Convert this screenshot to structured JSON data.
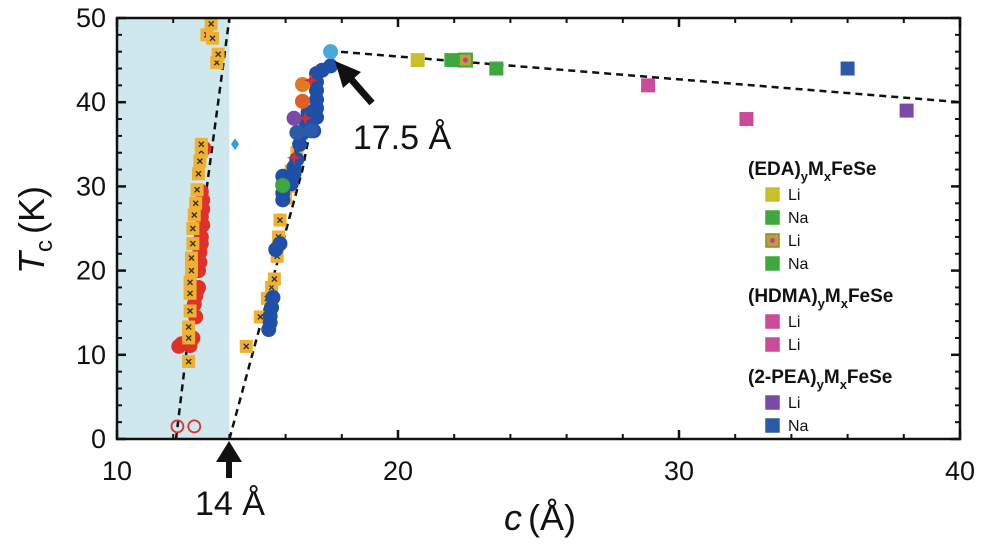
{
  "chart_data": {
    "type": "scatter",
    "xlabel": "c (Å)",
    "xlabel_var": "c",
    "xlabel_unit": "(Å)",
    "ylabel": "Tc (K)",
    "ylabel_var": "T",
    "ylabel_sub": "c",
    "ylabel_unit": "(K)",
    "xlim": [
      10,
      40
    ],
    "ylim": [
      0,
      50
    ],
    "xticks": [
      10,
      20,
      30,
      40
    ],
    "yticks": [
      0,
      10,
      20,
      30,
      40,
      50
    ],
    "grid": false,
    "shaded_region": {
      "x": [
        10,
        14
      ],
      "color": "#cfe8ee"
    },
    "annotations": [
      {
        "text": "14 Å",
        "x": 14,
        "y": 0
      },
      {
        "text": "17.5 Å",
        "x": 17.5,
        "y": 46
      }
    ],
    "trend_lines": [
      {
        "name": "left",
        "points": [
          [
            12.1,
            0
          ],
          [
            13.0,
            25
          ],
          [
            14.0,
            50
          ]
        ]
      },
      {
        "name": "main",
        "points": [
          [
            14.0,
            0
          ],
          [
            16.6,
            32
          ],
          [
            17.3,
            44
          ],
          [
            17.9,
            46
          ],
          [
            40,
            40
          ]
        ]
      }
    ],
    "legend": {
      "position": "right",
      "groups": [
        {
          "title_main": "(EDA)",
          "title_sub1": "y",
          "title_m": "M",
          "title_sub2": "x",
          "title_tail": "FeSe",
          "items": [
            {
              "label": "Li",
              "color": "#c8c02a",
              "edge": "#c8c02a",
              "mark": ""
            },
            {
              "label": "Na",
              "color": "#3ea83e",
              "edge": "#3ea83e",
              "mark": ""
            },
            {
              "label": "Li",
              "color": "#b9a23a",
              "edge": "#8a8a2a",
              "mark": "#c83c8a"
            },
            {
              "label": "Na",
              "color": "#3ea83e",
              "edge": "#3ea83e",
              "mark": ""
            }
          ]
        },
        {
          "title_main": "(HDMA)",
          "title_sub1": "y",
          "title_m": "M",
          "title_sub2": "x",
          "title_tail": "FeSe",
          "items": [
            {
              "label": "Li",
              "color": "#cc4a9a",
              "edge": "#cc4a9a",
              "mark": ""
            },
            {
              "label": "Li",
              "color": "#cc4a9a",
              "edge": "#cc4a9a",
              "mark": ""
            }
          ]
        },
        {
          "title_main": "(2-PEA)",
          "title_sub1": "y",
          "title_m": "M",
          "title_sub2": "x",
          "title_tail": "FeSe",
          "items": [
            {
              "label": "Li",
              "color": "#7b4aa8",
              "edge": "#7b4aa8",
              "mark": ""
            },
            {
              "label": "Na",
              "color": "#2a5aa8",
              "edge": "#2a5aa8",
              "mark": ""
            }
          ]
        }
      ]
    },
    "series": [
      {
        "marker": "circle",
        "color": "#e0302a",
        "points": [
          [
            12.2,
            11
          ],
          [
            12.3,
            11.3
          ],
          [
            12.5,
            11.6
          ],
          [
            12.6,
            11.1
          ],
          [
            12.7,
            12
          ],
          [
            12.8,
            14.5
          ],
          [
            12.75,
            16
          ],
          [
            12.8,
            17
          ],
          [
            12.85,
            17.7
          ],
          [
            12.9,
            18
          ],
          [
            12.9,
            20
          ],
          [
            12.95,
            21
          ],
          [
            12.95,
            22.2
          ],
          [
            13.0,
            23.2
          ],
          [
            13.0,
            24
          ],
          [
            13.05,
            25.4
          ],
          [
            13.0,
            26.4
          ],
          [
            13.05,
            27.3
          ],
          [
            13.05,
            28.4
          ],
          [
            13.0,
            29.4
          ],
          [
            13.1,
            34.5
          ]
        ]
      },
      {
        "marker": "open-circle",
        "color": "#e0302a",
        "points": [
          [
            12.15,
            1.5
          ],
          [
            12.75,
            1.5
          ]
        ]
      },
      {
        "marker": "square-x",
        "color": "#f0b030",
        "points": [
          [
            12.55,
            9.2
          ],
          [
            12.55,
            12
          ],
          [
            12.55,
            13.3
          ],
          [
            12.6,
            15.2
          ],
          [
            12.6,
            17.3
          ],
          [
            12.6,
            18.6
          ],
          [
            12.65,
            20
          ],
          [
            12.65,
            21.5
          ],
          [
            12.7,
            23.2
          ],
          [
            12.7,
            25
          ],
          [
            12.75,
            26.6
          ],
          [
            12.8,
            28
          ],
          [
            12.85,
            29.6
          ],
          [
            12.9,
            31.5
          ],
          [
            12.95,
            33
          ],
          [
            13.0,
            34.2
          ],
          [
            13.0,
            35
          ],
          [
            13.2,
            48
          ],
          [
            13.35,
            49.3
          ],
          [
            13.4,
            47.6
          ],
          [
            13.55,
            44.7
          ],
          [
            13.6,
            45.7
          ],
          [
            14.6,
            11
          ],
          [
            15.1,
            14.5
          ],
          [
            15.35,
            16.7
          ],
          [
            15.5,
            18
          ],
          [
            15.6,
            19
          ],
          [
            15.7,
            21.7
          ],
          [
            15.75,
            24
          ],
          [
            15.8,
            26
          ],
          [
            16.0,
            28.6
          ],
          [
            16.1,
            30
          ],
          [
            16.2,
            31.8
          ],
          [
            16.4,
            34
          ]
        ]
      },
      {
        "marker": "circle",
        "color": "#1f4fa6",
        "points": [
          [
            15.4,
            13
          ],
          [
            15.45,
            13.8
          ],
          [
            15.45,
            14.6
          ],
          [
            15.5,
            15.6
          ],
          [
            15.55,
            16.8
          ],
          [
            15.65,
            22.5
          ],
          [
            15.8,
            23.2
          ],
          [
            15.9,
            28.4
          ],
          [
            15.9,
            29.2
          ],
          [
            15.9,
            30.2
          ],
          [
            15.9,
            31.2
          ],
          [
            16.2,
            30.3
          ],
          [
            16.3,
            31.5
          ],
          [
            16.3,
            32.3
          ],
          [
            16.4,
            33.2
          ],
          [
            16.5,
            35
          ],
          [
            16.6,
            36.3
          ],
          [
            16.7,
            37.8
          ],
          [
            16.8,
            38.8
          ],
          [
            16.9,
            37.6
          ],
          [
            17.0,
            36.6
          ],
          [
            17.1,
            38.2
          ],
          [
            17.1,
            39.3
          ],
          [
            17.1,
            40.3
          ],
          [
            17.1,
            41.4
          ],
          [
            17.1,
            42.4
          ],
          [
            17.1,
            43.4
          ],
          [
            17.3,
            43.8
          ],
          [
            17.6,
            44.3
          ]
        ]
      },
      {
        "marker": "circle",
        "color": "#2a5aa8",
        "points": [
          [
            16.4,
            36.4
          ],
          [
            16.9,
            36.6
          ]
        ]
      },
      {
        "marker": "circle",
        "color": "#7b4aa8",
        "points": [
          [
            16.3,
            38.1
          ]
        ]
      },
      {
        "marker": "circle",
        "color": "#e06020",
        "points": [
          [
            16.6,
            40.1
          ]
        ]
      },
      {
        "marker": "circle",
        "color": "#e07a20",
        "points": [
          [
            16.6,
            42.1
          ]
        ]
      },
      {
        "marker": "circle",
        "color": "#3ea83e",
        "points": [
          [
            15.9,
            30.1
          ]
        ]
      },
      {
        "marker": "circle",
        "color": "#4aa8e0",
        "points": [
          [
            17.6,
            46
          ]
        ]
      },
      {
        "marker": "diamond",
        "color": "#3a9ae0",
        "points": [
          [
            14.2,
            35
          ]
        ]
      },
      {
        "marker": "star",
        "color": "#d03030",
        "points": [
          [
            16.7,
            38.1
          ],
          [
            16.9,
            42.6
          ],
          [
            16.3,
            33.4
          ]
        ]
      },
      {
        "marker": "square",
        "color": "#c8c02a",
        "points": [
          [
            20.7,
            45
          ]
        ]
      },
      {
        "marker": "square",
        "color": "#3ea83e",
        "points": [
          [
            21.9,
            45
          ],
          [
            22.3,
            45
          ]
        ]
      },
      {
        "marker": "square-dot",
        "color": "#b9a23a",
        "edge": "#3ea83e",
        "points": [
          [
            22.4,
            45
          ]
        ]
      },
      {
        "marker": "square",
        "color": "#3ea83e",
        "points": [
          [
            23.5,
            44
          ]
        ]
      },
      {
        "marker": "square",
        "color": "#cc4a9a",
        "points": [
          [
            28.9,
            42
          ],
          [
            32.4,
            38
          ]
        ]
      },
      {
        "marker": "square",
        "color": "#2a5aa8",
        "points": [
          [
            36.0,
            44
          ]
        ]
      },
      {
        "marker": "square",
        "color": "#7b4aa8",
        "points": [
          [
            38.1,
            39
          ]
        ]
      }
    ]
  }
}
